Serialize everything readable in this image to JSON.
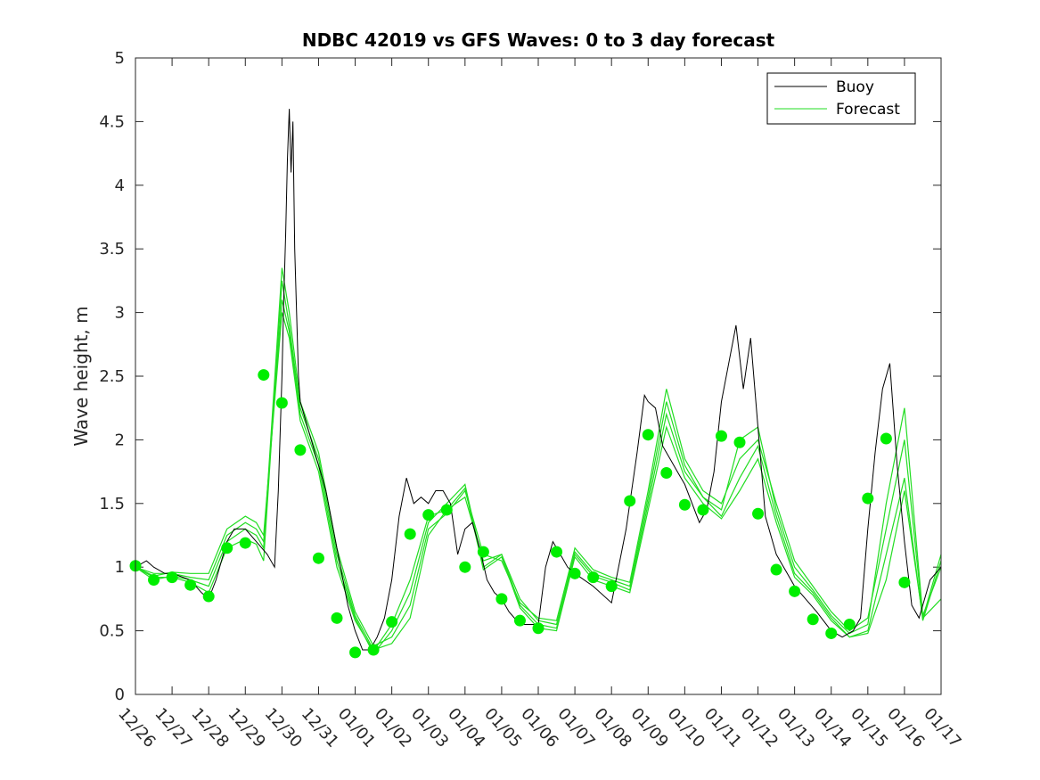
{
  "chart_data": {
    "type": "line",
    "title": "NDBC 42019 vs GFS Waves: 0 to 3 day forecast",
    "xlabel": "",
    "ylabel": "Wave height, m",
    "xlim": [
      0,
      22
    ],
    "ylim": [
      0,
      5
    ],
    "yticks": [
      0,
      0.5,
      1,
      1.5,
      2,
      2.5,
      3,
      3.5,
      4,
      4.5,
      5
    ],
    "ytick_labels": [
      "0",
      "0.5",
      "1",
      "1.5",
      "2",
      "2.5",
      "3",
      "3.5",
      "4",
      "4.5",
      "5"
    ],
    "xtick_labels": [
      "12/26",
      "12/27",
      "12/28",
      "12/29",
      "12/30",
      "12/31",
      "01/01",
      "01/02",
      "01/03",
      "01/04",
      "01/05",
      "01/06",
      "01/07",
      "01/08",
      "01/09",
      "01/10",
      "01/11",
      "01/12",
      "01/13",
      "01/14",
      "01/15",
      "01/16",
      "01/17"
    ],
    "colors": {
      "buoy": "#000000",
      "forecast": "#22dd22",
      "marker": "#00ee00"
    },
    "legend": {
      "position": "top-right",
      "entries": [
        "Buoy",
        "Forecast"
      ]
    },
    "buoy": {
      "x": [
        0,
        0.3,
        0.5,
        0.8,
        1,
        1.5,
        1.8,
        2,
        2.2,
        2.5,
        2.7,
        3,
        3.3,
        3.6,
        3.8,
        3.9,
        4,
        4.05,
        4.1,
        4.15,
        4.2,
        4.25,
        4.3,
        4.35,
        4.4,
        4.45,
        4.5,
        4.6,
        4.7,
        4.8,
        4.9,
        5,
        5.2,
        5.4,
        5.6,
        5.8,
        6,
        6.2,
        6.4,
        6.6,
        6.8,
        7,
        7.2,
        7.4,
        7.6,
        7.8,
        8,
        8.2,
        8.4,
        8.6,
        8.8,
        9,
        9.2,
        9.4,
        9.6,
        9.8,
        10,
        10.2,
        10.5,
        10.8,
        11,
        11.2,
        11.4,
        11.6,
        11.8,
        12,
        12.5,
        13,
        13.4,
        13.7,
        13.9,
        14,
        14.2,
        14.4,
        14.6,
        14.8,
        15,
        15.2,
        15.4,
        15.6,
        15.8,
        16,
        16.2,
        16.4,
        16.6,
        16.8,
        17,
        17.2,
        17.5,
        17.8,
        18,
        18.3,
        18.6,
        19,
        19.3,
        19.6,
        19.8,
        20,
        20.2,
        20.4,
        20.6,
        20.8,
        21,
        21.2,
        21.4,
        21.7,
        22
      ],
      "y": [
        1.0,
        1.05,
        1.0,
        0.95,
        0.95,
        0.9,
        0.8,
        0.75,
        0.9,
        1.2,
        1.3,
        1.3,
        1.2,
        1.1,
        1.0,
        1.6,
        2.5,
        3.1,
        3.6,
        4.2,
        4.6,
        4.1,
        4.5,
        3.5,
        3.0,
        2.5,
        2.3,
        2.2,
        2.1,
        2.0,
        1.9,
        1.8,
        1.6,
        1.3,
        1.0,
        0.7,
        0.5,
        0.35,
        0.35,
        0.45,
        0.6,
        0.9,
        1.4,
        1.7,
        1.5,
        1.55,
        1.5,
        1.6,
        1.6,
        1.5,
        1.1,
        1.3,
        1.35,
        1.15,
        0.9,
        0.8,
        0.75,
        0.65,
        0.55,
        0.55,
        0.55,
        1.0,
        1.2,
        1.1,
        1.0,
        0.95,
        0.85,
        0.72,
        1.3,
        1.9,
        2.35,
        2.3,
        2.25,
        1.95,
        1.85,
        1.75,
        1.65,
        1.5,
        1.35,
        1.45,
        1.75,
        2.3,
        2.6,
        2.9,
        2.4,
        2.8,
        2.1,
        1.4,
        1.1,
        0.95,
        0.85,
        0.75,
        0.65,
        0.5,
        0.45,
        0.5,
        0.6,
        1.3,
        1.9,
        2.4,
        2.6,
        1.8,
        1.2,
        0.7,
        0.6,
        0.9,
        1.0
      ]
    },
    "forecast_series": [
      {
        "x": [
          0,
          0.5,
          1,
          1.5,
          2,
          2.5,
          3,
          3.3,
          3.5,
          4.0,
          4.2,
          4.5,
          5,
          5.5,
          6,
          6.5,
          7,
          7.5,
          8,
          8.5,
          9,
          9.5,
          10,
          10.5,
          11,
          11.5,
          12,
          12.5,
          13,
          13.5,
          14,
          14.5,
          15,
          15.5,
          16,
          16.5,
          17,
          17.5,
          18,
          18.5,
          19,
          19.5,
          20,
          20.5,
          21,
          21.5,
          22
        ],
        "y": [
          1.0,
          0.92,
          0.92,
          0.88,
          0.8,
          1.15,
          1.22,
          1.18,
          1.05,
          3.25,
          2.9,
          2.25,
          1.85,
          1.1,
          0.62,
          0.35,
          0.4,
          0.6,
          1.25,
          1.45,
          1.55,
          1.05,
          1.1,
          0.75,
          0.58,
          0.55,
          1.12,
          0.95,
          0.9,
          0.85,
          1.55,
          2.3,
          1.8,
          1.55,
          1.45,
          2.0,
          2.1,
          1.45,
          1.0,
          0.82,
          0.62,
          0.48,
          0.55,
          1.5,
          2.25,
          0.62,
          1.0
        ]
      },
      {
        "x": [
          0,
          0.5,
          1,
          1.5,
          2,
          2.5,
          3,
          3.3,
          3.5,
          4.0,
          4.2,
          4.5,
          5,
          5.5,
          6,
          6.5,
          7,
          7.5,
          8,
          8.5,
          9,
          9.5,
          10,
          10.5,
          11,
          11.5,
          12,
          12.5,
          13,
          13.5,
          14,
          14.5,
          15,
          15.5,
          16,
          16.5,
          17,
          17.5,
          18,
          18.5,
          19,
          19.5,
          20,
          20.5,
          21,
          21.5,
          22
        ],
        "y": [
          1.0,
          0.9,
          0.93,
          0.9,
          0.85,
          1.2,
          1.3,
          1.25,
          1.15,
          3.35,
          3.0,
          2.3,
          1.9,
          1.15,
          0.65,
          0.38,
          0.45,
          0.7,
          1.3,
          1.42,
          1.6,
          1.1,
          1.05,
          0.72,
          0.6,
          0.58,
          1.15,
          0.98,
          0.92,
          0.88,
          1.6,
          2.4,
          1.85,
          1.6,
          1.5,
          1.85,
          2.0,
          1.5,
          1.05,
          0.85,
          0.65,
          0.5,
          0.6,
          1.3,
          2.0,
          0.6,
          1.1
        ]
      },
      {
        "x": [
          0,
          0.5,
          1,
          1.5,
          2,
          2.5,
          3,
          3.3,
          3.5,
          4.0,
          4.2,
          4.5,
          5,
          5.5,
          6,
          6.5,
          7,
          7.5,
          8,
          8.5,
          9,
          9.5,
          10,
          10.5,
          11,
          11.5,
          12,
          12.5,
          13,
          13.5,
          14,
          14.5,
          15,
          15.5,
          16,
          16.5,
          17,
          17.5,
          18,
          18.5,
          19,
          19.5,
          20,
          20.5,
          21,
          21.5,
          22
        ],
        "y": [
          1.0,
          0.95,
          0.95,
          0.92,
          0.9,
          1.25,
          1.35,
          1.3,
          1.2,
          3.1,
          2.85,
          2.2,
          1.8,
          1.05,
          0.6,
          0.32,
          0.5,
          0.8,
          1.35,
          1.5,
          1.65,
          1.0,
          1.1,
          0.7,
          0.55,
          0.52,
          1.1,
          0.93,
          0.88,
          0.82,
          1.5,
          2.2,
          1.75,
          1.55,
          1.4,
          1.7,
          1.95,
          1.4,
          0.95,
          0.8,
          0.6,
          0.45,
          0.5,
          1.1,
          1.7,
          0.58,
          1.05
        ]
      },
      {
        "x": [
          0,
          0.5,
          1,
          1.5,
          2,
          2.5,
          3,
          3.3,
          3.5,
          4.0,
          4.2,
          4.5,
          5,
          5.5,
          6,
          6.5,
          7,
          7.5,
          8,
          8.5,
          9,
          9.5,
          10,
          10.5,
          11,
          11.5,
          12,
          12.5,
          13,
          13.5,
          14,
          14.5,
          15,
          15.5,
          16,
          16.5,
          17,
          17.5,
          18,
          18.5,
          19,
          19.5,
          20,
          20.5,
          21,
          21.5,
          22
        ],
        "y": [
          1.0,
          0.93,
          0.96,
          0.95,
          0.95,
          1.3,
          1.4,
          1.35,
          1.25,
          3.0,
          2.8,
          2.15,
          1.75,
          1.0,
          0.58,
          0.34,
          0.55,
          0.9,
          1.4,
          1.45,
          1.62,
          0.98,
          1.08,
          0.68,
          0.52,
          0.5,
          1.08,
          0.9,
          0.85,
          0.8,
          1.45,
          2.1,
          1.7,
          1.5,
          1.38,
          1.6,
          1.85,
          1.35,
          0.92,
          0.78,
          0.58,
          0.45,
          0.48,
          0.9,
          1.6,
          0.6,
          0.75
        ]
      }
    ],
    "markers": {
      "x": [
        0,
        0.5,
        1,
        1.5,
        2,
        2.5,
        3,
        3.5,
        4,
        4.5,
        5,
        5.5,
        6,
        6.5,
        7,
        7.5,
        8,
        8.5,
        9,
        9.5,
        10,
        10.5,
        11,
        11.5,
        12,
        12.5,
        13,
        13.5,
        14,
        14.5,
        15,
        15.5,
        16,
        16.5,
        17,
        17.5,
        18,
        18.5,
        19,
        19.5,
        20,
        20.5,
        21
      ],
      "y": [
        1.01,
        0.9,
        0.92,
        0.86,
        0.77,
        1.15,
        1.19,
        2.51,
        2.29,
        1.92,
        1.07,
        0.6,
        0.33,
        0.35,
        0.57,
        1.26,
        1.41,
        1.45,
        1.0,
        1.12,
        0.75,
        0.58,
        0.52,
        1.12,
        0.95,
        0.92,
        0.85,
        1.52,
        2.04,
        1.74,
        1.49,
        1.45,
        2.03,
        1.98,
        1.42,
        0.98,
        0.81,
        0.59,
        0.48,
        0.55,
        1.54,
        2.01,
        0.88
      ]
    }
  }
}
